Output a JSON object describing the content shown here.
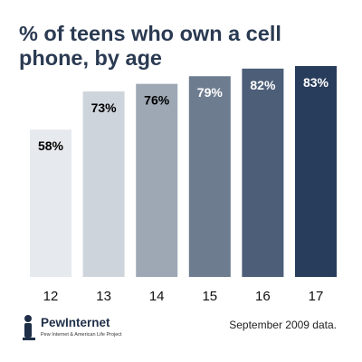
{
  "chart_data": {
    "type": "bar",
    "title": "% of teens who own a cell phone, by age",
    "categories": [
      "12",
      "13",
      "14",
      "15",
      "16",
      "17"
    ],
    "values": [
      58,
      73,
      76,
      79,
      82,
      83
    ],
    "value_labels": [
      "58%",
      "73%",
      "76%",
      "79%",
      "82%",
      "83%"
    ],
    "ylim": [
      0,
      83
    ],
    "grid": false,
    "legend": "none",
    "bar_colors": [
      "#e6e9ed",
      "#cdd4dc",
      "#9ea8b5",
      "#6e7c90",
      "#4c5e78",
      "#283c5b"
    ],
    "label_colors": [
      "#000000",
      "#000000",
      "#000000",
      "#ffffff",
      "#ffffff",
      "#ffffff"
    ]
  },
  "logo": {
    "name": "PewInternet",
    "tagline": "Pew Internet & American Life Project",
    "icon": "pew-person-icon"
  },
  "note": "September 2009 data."
}
